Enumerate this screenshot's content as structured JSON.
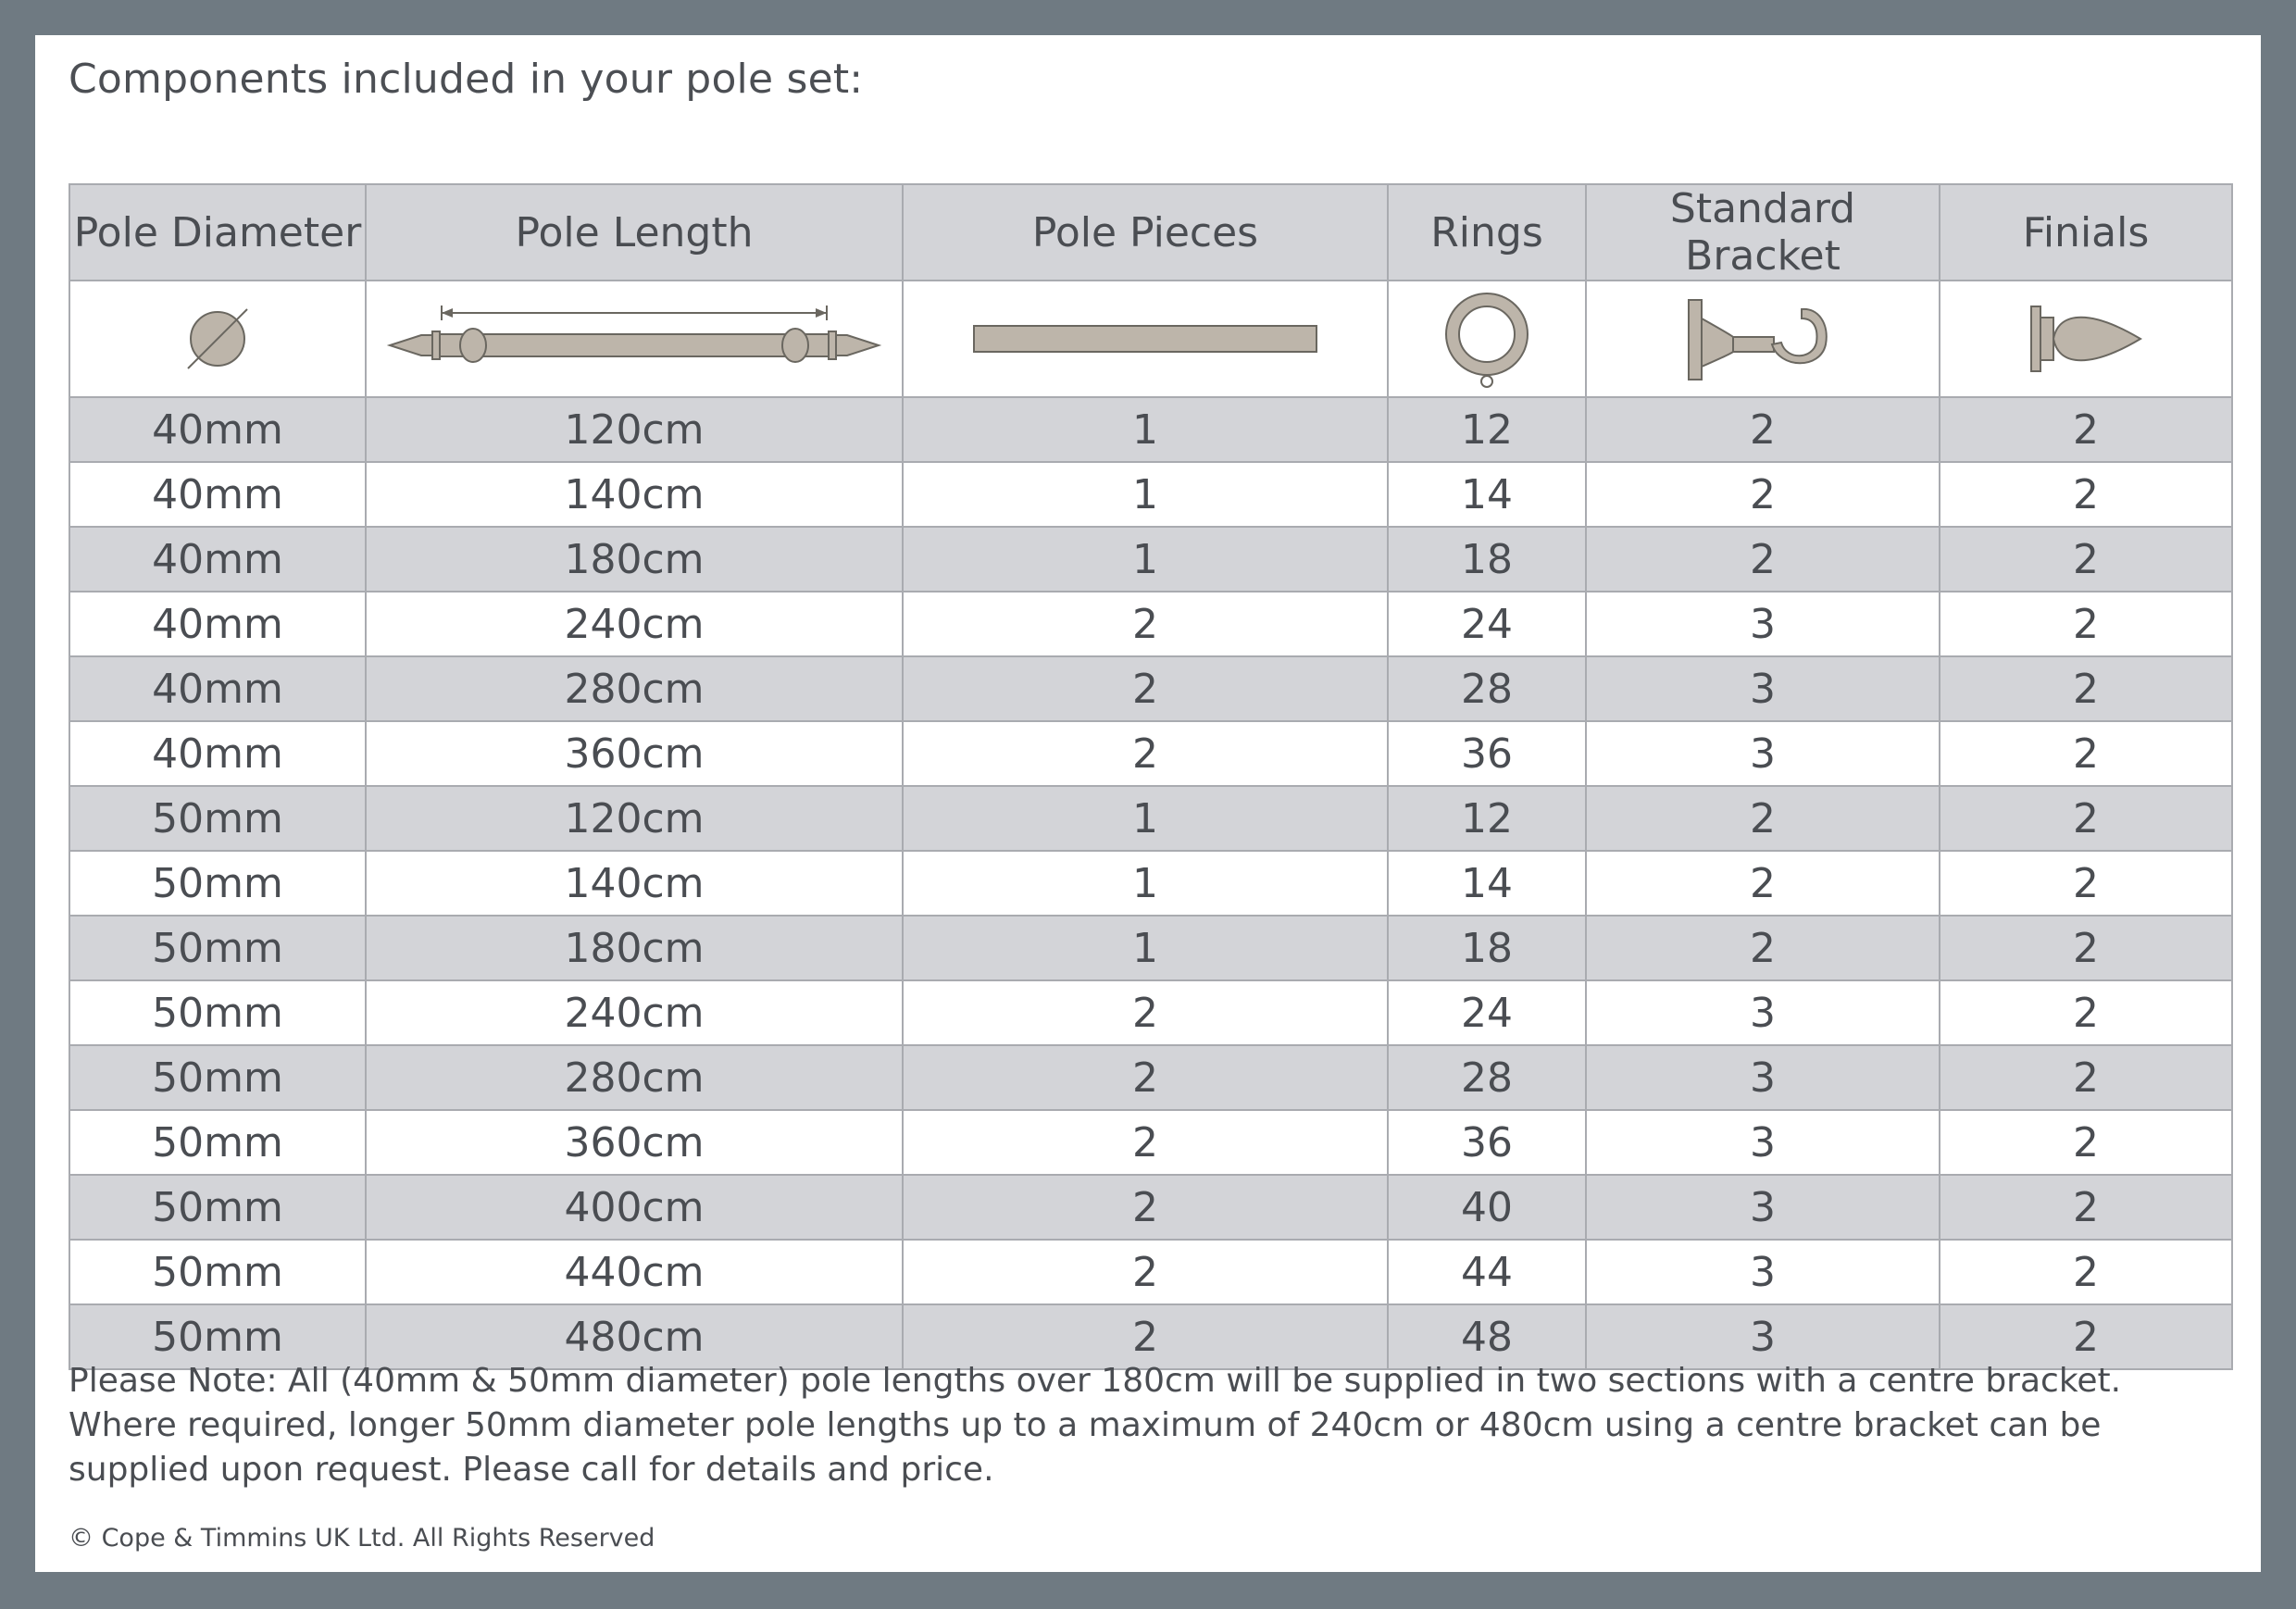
{
  "heading": "Components included in your pole set:",
  "columns": [
    "Pole Diameter",
    "Pole Length",
    "Pole Pieces",
    "Rings",
    "Standard Bracket",
    "Finials"
  ],
  "icons": [
    "pole-diameter-icon",
    "pole-length-icon",
    "pole-piece-icon",
    "ring-icon",
    "bracket-icon",
    "finial-icon"
  ],
  "rows": [
    [
      "40mm",
      "120cm",
      "1",
      "12",
      "2",
      "2"
    ],
    [
      "40mm",
      "140cm",
      "1",
      "14",
      "2",
      "2"
    ],
    [
      "40mm",
      "180cm",
      "1",
      "18",
      "2",
      "2"
    ],
    [
      "40mm",
      "240cm",
      "2",
      "24",
      "3",
      "2"
    ],
    [
      "40mm",
      "280cm",
      "2",
      "28",
      "3",
      "2"
    ],
    [
      "40mm",
      "360cm",
      "2",
      "36",
      "3",
      "2"
    ],
    [
      "50mm",
      "120cm",
      "1",
      "12",
      "2",
      "2"
    ],
    [
      "50mm",
      "140cm",
      "1",
      "14",
      "2",
      "2"
    ],
    [
      "50mm",
      "180cm",
      "1",
      "18",
      "2",
      "2"
    ],
    [
      "50mm",
      "240cm",
      "2",
      "24",
      "3",
      "2"
    ],
    [
      "50mm",
      "280cm",
      "2",
      "28",
      "3",
      "2"
    ],
    [
      "50mm",
      "360cm",
      "2",
      "36",
      "3",
      "2"
    ],
    [
      "50mm",
      "400cm",
      "2",
      "40",
      "3",
      "2"
    ],
    [
      "50mm",
      "440cm",
      "2",
      "44",
      "3",
      "2"
    ],
    [
      "50mm",
      "480cm",
      "2",
      "48",
      "3",
      "2"
    ]
  ],
  "note": "Please Note: All (40mm & 50mm diameter) pole lengths over 180cm will be supplied in two sections with a centre bracket. Where required, longer 50mm diameter pole lengths up to a maximum of 240cm or 480cm using a centre bracket can be supplied upon request. Please call for details and price.",
  "copyright": "© Cope & Timmins UK Ltd. All Rights Reserved",
  "colors": {
    "frame": "#6f7a82",
    "stripe": "#d3d4d8",
    "border": "#a9abb0",
    "icon_fill": "#bdb5aa",
    "text": "#4a4d52"
  }
}
